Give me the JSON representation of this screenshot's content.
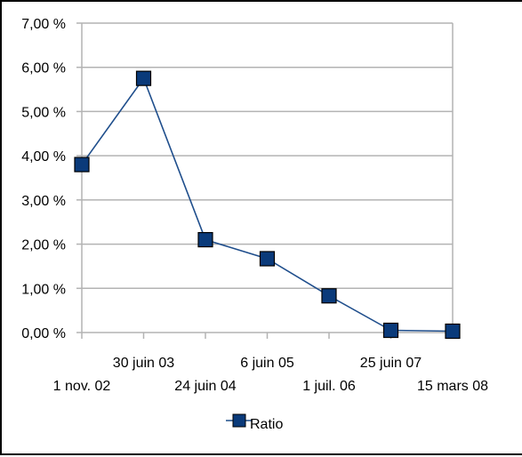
{
  "chart_data": {
    "type": "line",
    "categories": [
      "1 nov. 02",
      "30 juin 03",
      "24 juin 04",
      "6 juin 05",
      "1 juil. 06",
      "25 juin 07",
      "15 mars 08"
    ],
    "series": [
      {
        "name": "Ratio",
        "values": [
          3.8,
          5.75,
          2.1,
          1.67,
          0.83,
          0.05,
          0.03
        ]
      }
    ],
    "ylim": [
      0,
      7
    ],
    "yticks": [
      "0,00 %",
      "1,00 %",
      "2,00 %",
      "3,00 %",
      "4,00 %",
      "5,00 %",
      "6,00 %",
      "7,00 %"
    ],
    "title": "",
    "xlabel": "",
    "ylabel": "",
    "grid": true,
    "legend": "bottom",
    "colors": {
      "line": "#1f4e8c",
      "marker_fill": "#0a3a7a",
      "marker_stroke": "#000000",
      "grid": "#b3b3b3",
      "axis": "#b3b3b3"
    }
  }
}
